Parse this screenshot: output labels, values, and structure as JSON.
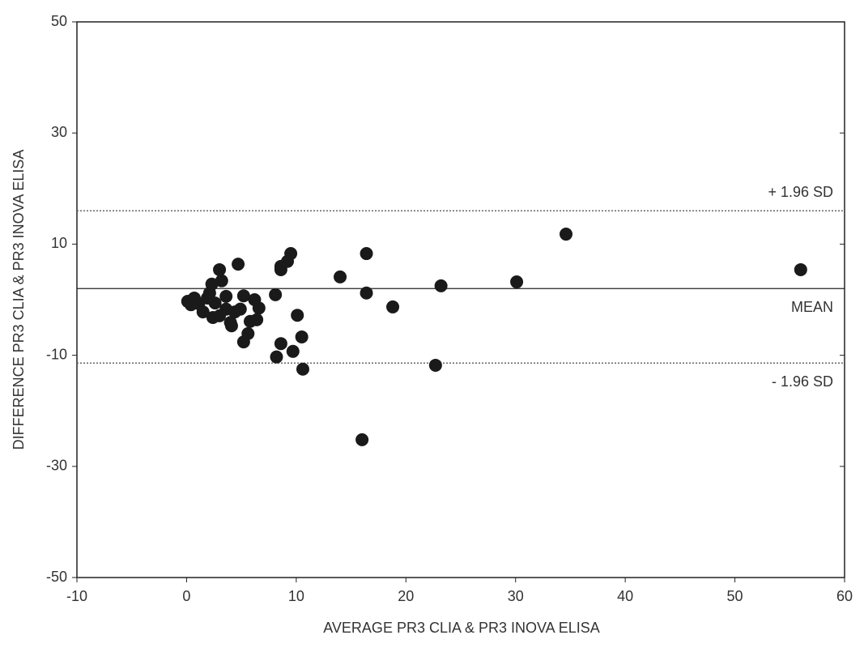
{
  "chart_data": {
    "type": "scatter",
    "x_label": "AVERAGE PR3 CLIA & PR3 INOVA ELISA",
    "y_label": "DIFFERENCE PR3 CLIA & PR3 INOVA ELISA",
    "xlim": [
      -10,
      60
    ],
    "ylim": [
      -50,
      50
    ],
    "xticks": [
      -10,
      0,
      10,
      20,
      30,
      40,
      50,
      60
    ],
    "yticks": [
      -50,
      -30,
      -10,
      10,
      30,
      50
    ],
    "grid": false,
    "series": [
      {
        "color": "#1a1a1a",
        "x": [
          34.6,
          56.0,
          30.1,
          23.2,
          18.8,
          16.4,
          16.4,
          14.0,
          22.7,
          16.0,
          9.5,
          9.2,
          8.6,
          8.6,
          8.1,
          10.1,
          10.5,
          8.6,
          9.7,
          8.2,
          10.6,
          4.7,
          3.0,
          3.2,
          2.3,
          5.2,
          6.2,
          6.6,
          6.4,
          5.6,
          5.2,
          5.8,
          4.1,
          4.4,
          3.6,
          2.6,
          3.0,
          2.4,
          1.5,
          1.1,
          0.7,
          0.1,
          0.4,
          1.9,
          2.1,
          4.9,
          3.6,
          4.0
        ],
        "values": [
          11.8,
          5.4,
          3.2,
          2.5,
          -1.3,
          8.3,
          1.2,
          4.1,
          -11.8,
          -25.2,
          8.3,
          6.9,
          6.0,
          5.4,
          0.9,
          -2.8,
          -6.7,
          -7.9,
          -9.3,
          -10.3,
          -12.5,
          6.4,
          5.4,
          3.4,
          2.8,
          0.7,
          0,
          -1.5,
          -3.6,
          -6.1,
          -7.6,
          -3.9,
          -4.7,
          -2.2,
          0.6,
          -0.6,
          -2.9,
          -3.2,
          -2.2,
          -0.7,
          0.3,
          -0.3,
          -0.9,
          0.3,
          1.2,
          -1.7,
          -1.7,
          -4.1
        ]
      }
    ],
    "reference_lines": [
      {
        "value": 16,
        "label": "+ 1.96 SD",
        "style": "dotted",
        "label_position": "above"
      },
      {
        "value": 2,
        "label": "MEAN",
        "style": "solid",
        "label_position": "below"
      },
      {
        "value": -11.4,
        "label": "- 1.96 SD",
        "style": "dotted",
        "label_position": "below"
      }
    ]
  }
}
